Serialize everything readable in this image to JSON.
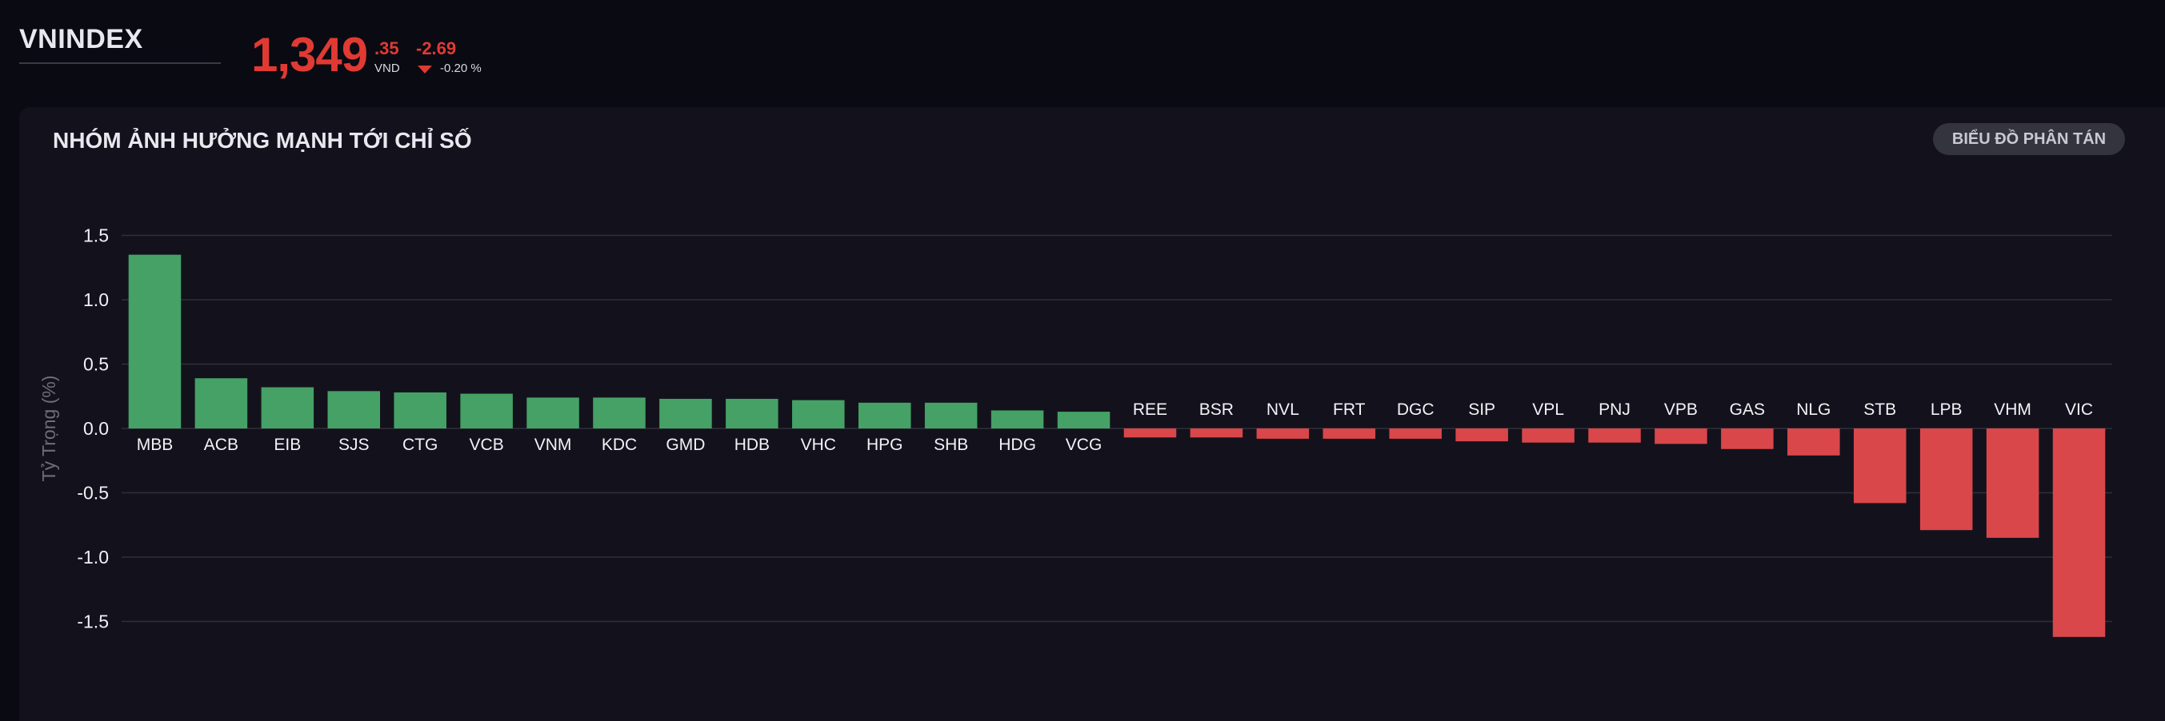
{
  "header": {
    "index_name": "VNINDEX",
    "price_int": "1,349",
    "price_dec": ".35",
    "currency": "VND",
    "change_abs": "-2.69",
    "change_pct": "-0.20 %",
    "change_color": "#e03a33"
  },
  "panel": {
    "title": "NHÓM ẢNH HƯỞNG MẠNH TỚI CHỈ SỐ",
    "scatter_button": "BIỂU ĐỒ PHÂN TÁN"
  },
  "chart_data": {
    "type": "bar",
    "ylabel": "Tỷ Trọng (%)",
    "xlabel": "",
    "ylim": [
      -1.8,
      1.6
    ],
    "yticks": [
      1.5,
      1.0,
      0.5,
      0.0,
      -0.5,
      -1.0,
      -1.5
    ],
    "ytick_labels": [
      "1.5",
      "1.0",
      "0.5",
      "0.0",
      "-0.5",
      "-1.0",
      "-1.5"
    ],
    "grid": true,
    "positive_color": "#45a165",
    "negative_color": "#d9474a",
    "categories": [
      "MBB",
      "ACB",
      "EIB",
      "SJS",
      "CTG",
      "VCB",
      "VNM",
      "KDC",
      "GMD",
      "HDB",
      "VHC",
      "HPG",
      "SHB",
      "HDG",
      "VCG",
      "REE",
      "BSR",
      "NVL",
      "FRT",
      "DGC",
      "SIP",
      "VPL",
      "PNJ",
      "VPB",
      "GAS",
      "NLG",
      "STB",
      "LPB",
      "VHM",
      "VIC"
    ],
    "values": [
      1.35,
      0.39,
      0.32,
      0.29,
      0.28,
      0.27,
      0.24,
      0.24,
      0.23,
      0.23,
      0.22,
      0.2,
      0.2,
      0.14,
      0.13,
      -0.07,
      -0.07,
      -0.08,
      -0.08,
      -0.08,
      -0.1,
      -0.11,
      -0.11,
      -0.12,
      -0.16,
      -0.21,
      -0.58,
      -0.79,
      -0.85,
      -1.62
    ]
  }
}
